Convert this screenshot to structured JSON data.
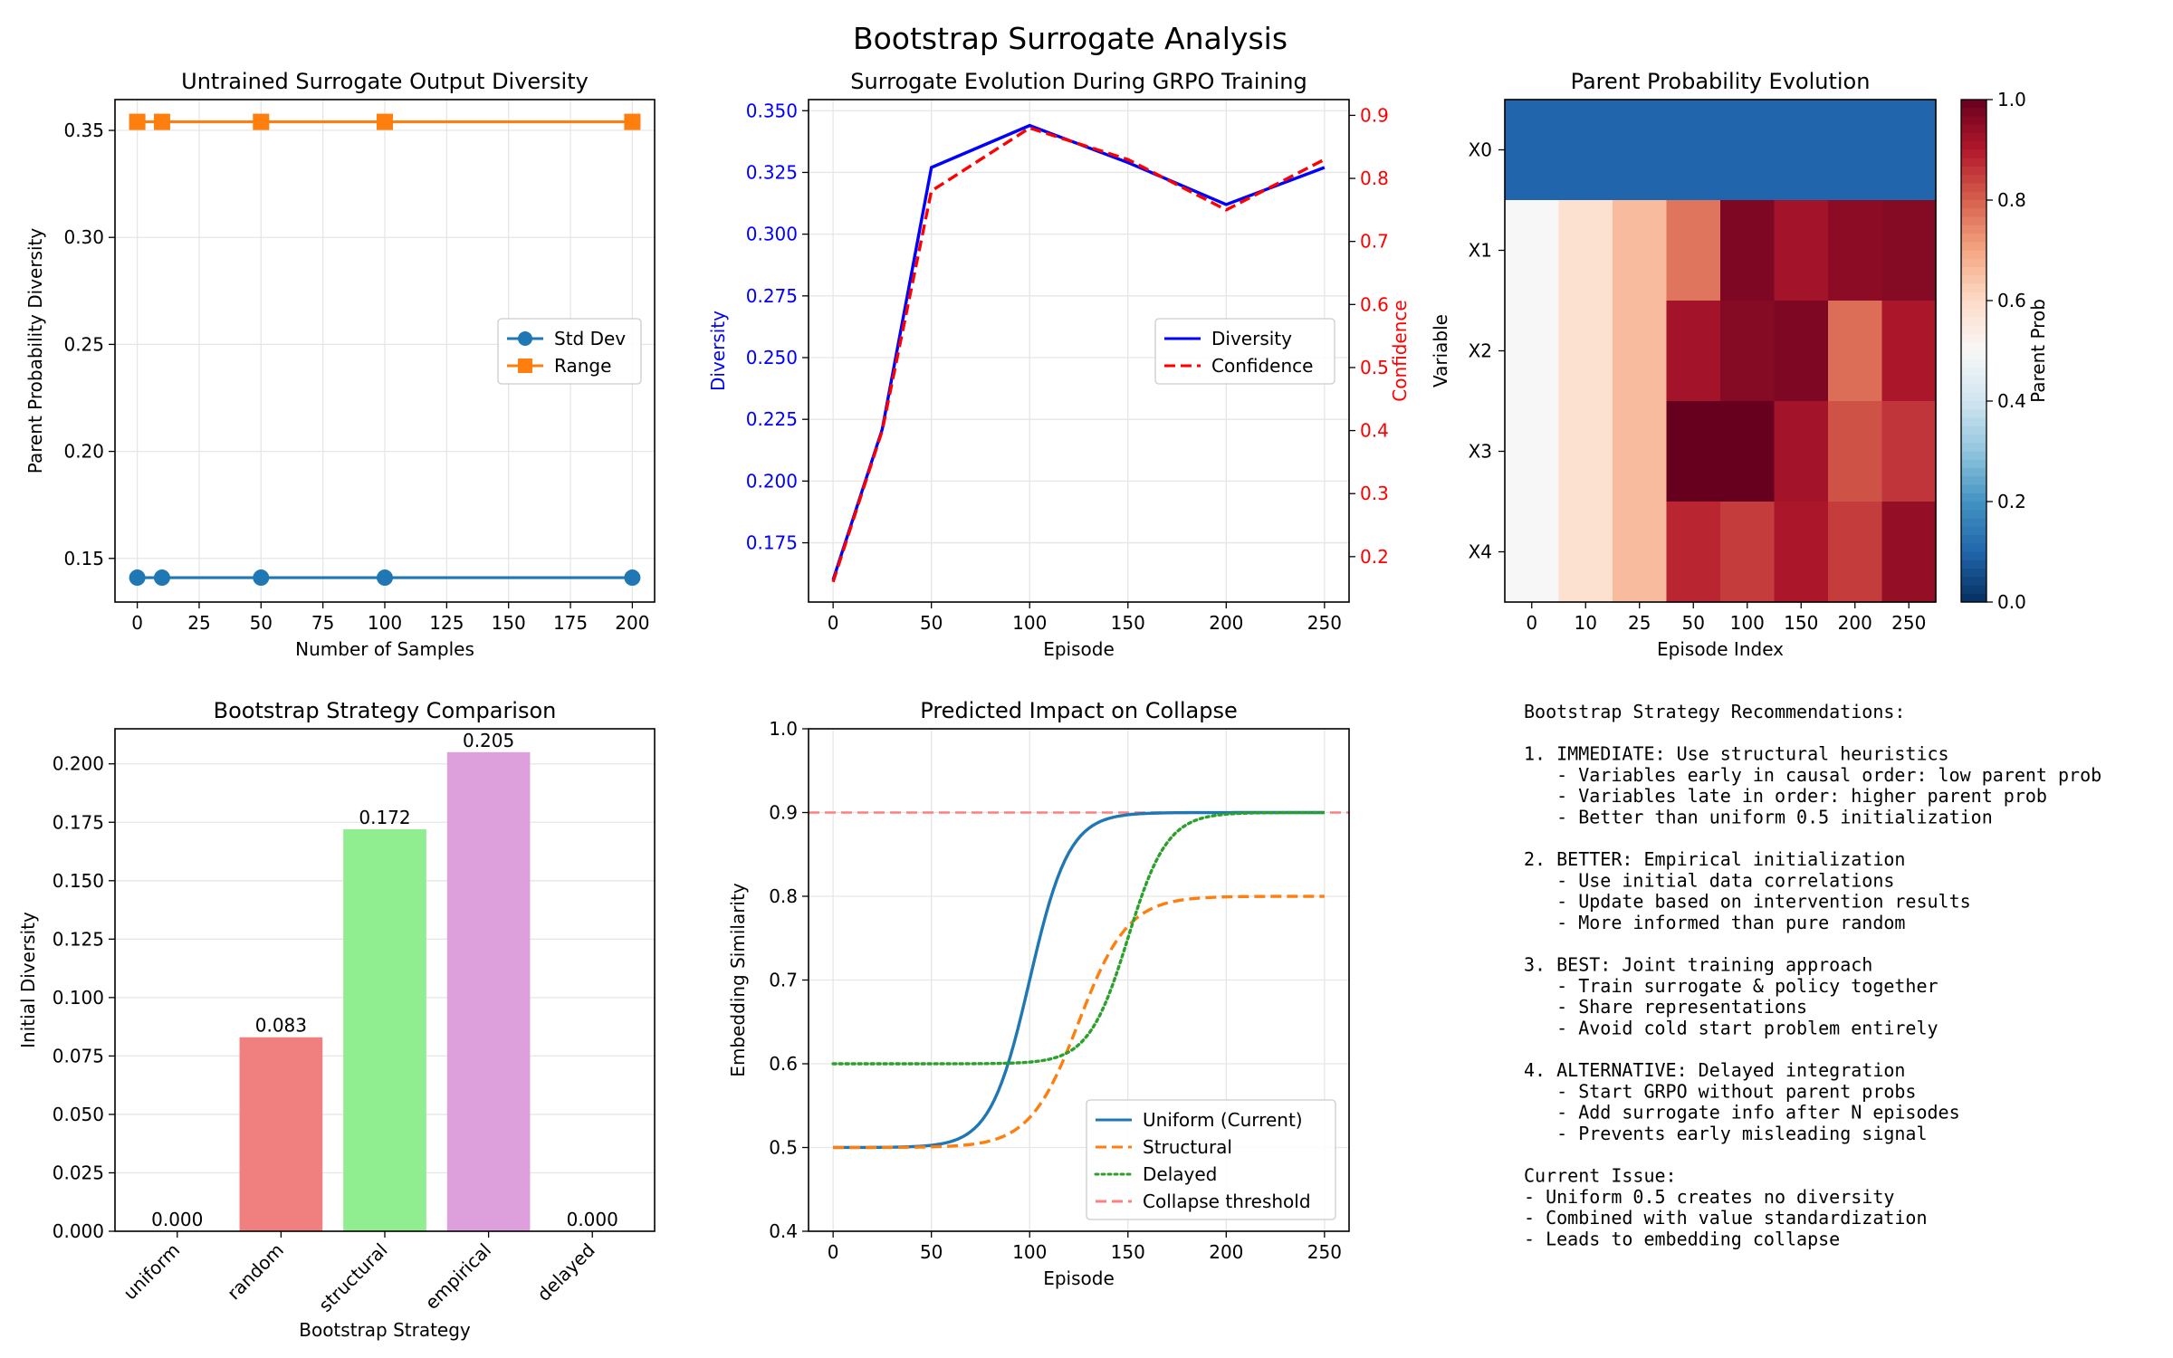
{
  "figure": {
    "title": "Bootstrap Surrogate Analysis"
  },
  "colors": {
    "blue": "#1f77b4",
    "orange": "#ff7f0e",
    "green": "#2ca02c",
    "pure_blue": "#0000ff",
    "pure_red": "#ff0000",
    "bar_random": "#f08080",
    "bar_structural": "#90ee90",
    "bar_empirical": "#dda0dd",
    "threshold": "#ff7f7f",
    "grid": "#e6e6e6"
  },
  "chart_data": [
    {
      "id": "diversity",
      "type": "line",
      "title": "Untrained Surrogate Output Diversity",
      "xlabel": "Number of Samples",
      "ylabel": "Parent Probability Diversity",
      "xlim": [
        -9,
        209
      ],
      "ylim": [
        0.1296,
        0.3644
      ],
      "x_ticks": [
        0,
        25,
        50,
        75,
        100,
        125,
        150,
        175,
        200
      ],
      "y_ticks": [
        0.15,
        0.2,
        0.25,
        0.3,
        0.35
      ],
      "y_tick_labels": [
        "0.15",
        "0.20",
        "0.25",
        "0.30",
        "0.35"
      ],
      "x": [
        0,
        10,
        50,
        100,
        200
      ],
      "series": [
        {
          "name": "Std Dev",
          "values": [
            0.141,
            0.141,
            0.141,
            0.141,
            0.141
          ],
          "color": "#1f77b4",
          "marker": "circle"
        },
        {
          "name": "Range",
          "values": [
            0.354,
            0.354,
            0.354,
            0.354,
            0.354
          ],
          "color": "#ff7f0e",
          "marker": "square"
        }
      ],
      "grid": true,
      "legend": "center-right"
    },
    {
      "id": "evolution",
      "type": "line",
      "title": "Surrogate Evolution During GRPO Training",
      "xlabel": "Episode",
      "ylabel": "Diversity",
      "ylabel_right": "Confidence",
      "xlim": [
        -12.5,
        262.5
      ],
      "ylim": [
        0.151,
        0.3545
      ],
      "ylim_right": [
        0.128,
        0.925
      ],
      "x_ticks": [
        0,
        50,
        100,
        150,
        200,
        250
      ],
      "y_ticks": [
        0.175,
        0.2,
        0.225,
        0.25,
        0.275,
        0.3,
        0.325,
        0.35
      ],
      "y_tick_labels": [
        "0.175",
        "0.200",
        "0.225",
        "0.250",
        "0.275",
        "0.300",
        "0.325",
        "0.350"
      ],
      "y_ticks_right": [
        0.2,
        0.3,
        0.4,
        0.5,
        0.6,
        0.7,
        0.8,
        0.9
      ],
      "y_tick_labels_right": [
        "0.2",
        "0.3",
        "0.4",
        "0.5",
        "0.6",
        "0.7",
        "0.8",
        "0.9"
      ],
      "x": [
        0,
        25,
        50,
        100,
        150,
        200,
        250
      ],
      "series": [
        {
          "name": "Diversity",
          "axis": "left",
          "values": [
            0.16,
            0.221,
            0.327,
            0.344,
            0.329,
            0.312,
            0.327
          ],
          "color": "#0000ff",
          "style": "solid"
        },
        {
          "name": "Confidence",
          "axis": "right",
          "values": [
            0.16,
            0.4,
            0.78,
            0.88,
            0.83,
            0.75,
            0.83
          ],
          "color": "#ff0000",
          "style": "dashed"
        }
      ],
      "grid": true,
      "legend": "center-right"
    },
    {
      "id": "heatmap",
      "type": "heatmap",
      "title": "Parent Probability Evolution",
      "xlabel": "Episode Index",
      "ylabel": "Variable",
      "x_categories": [
        "0",
        "10",
        "25",
        "50",
        "100",
        "150",
        "200",
        "250"
      ],
      "y_categories": [
        "X0",
        "X1",
        "X2",
        "X3",
        "X4"
      ],
      "values": [
        [
          0.1,
          0.1,
          0.1,
          0.1,
          0.1,
          0.1,
          0.1,
          0.1
        ],
        [
          0.5,
          0.58,
          0.66,
          0.77,
          0.97,
          0.92,
          0.95,
          0.96
        ],
        [
          0.5,
          0.58,
          0.66,
          0.92,
          0.96,
          0.97,
          0.78,
          0.91
        ],
        [
          0.5,
          0.58,
          0.66,
          1.0,
          1.0,
          0.92,
          0.82,
          0.86
        ],
        [
          0.5,
          0.58,
          0.66,
          0.88,
          0.85,
          0.91,
          0.85,
          0.94
        ]
      ],
      "colorbar": {
        "label": "Parent Prob",
        "range": [
          0.0,
          1.0
        ],
        "ticks": [
          0.0,
          0.2,
          0.4,
          0.6,
          0.8,
          1.0
        ],
        "tick_labels": [
          "0.0",
          "0.2",
          "0.4",
          "0.6",
          "0.8",
          "1.0"
        ],
        "colormap": "RdBu_r"
      }
    },
    {
      "id": "strategies",
      "type": "bar",
      "title": "Bootstrap Strategy Comparison",
      "xlabel": "Bootstrap Strategy",
      "ylabel": "Initial Diversity",
      "categories": [
        "uniform",
        "random",
        "structural",
        "empirical",
        "delayed"
      ],
      "values": [
        0.0,
        0.083,
        0.172,
        0.205,
        0.0
      ],
      "value_labels": [
        "0.000",
        "0.083",
        "0.172",
        "0.205",
        "0.000"
      ],
      "bar_colors": [
        "#1f77b4",
        "#f08080",
        "#90ee90",
        "#dda0dd",
        "#ffa500"
      ],
      "ylim": [
        0,
        0.215
      ],
      "y_ticks": [
        0.0,
        0.025,
        0.05,
        0.075,
        0.1,
        0.125,
        0.15,
        0.175,
        0.2
      ],
      "y_tick_labels": [
        "0.000",
        "0.025",
        "0.050",
        "0.075",
        "0.100",
        "0.125",
        "0.150",
        "0.175",
        "0.200"
      ],
      "grid": true
    },
    {
      "id": "impact",
      "type": "line",
      "title": "Predicted Impact on Collapse",
      "xlabel": "Episode",
      "ylabel": "Embedding Similarity",
      "xlim": [
        -12.5,
        262.5
      ],
      "ylim": [
        0.4,
        1.0
      ],
      "x_ticks": [
        0,
        50,
        100,
        150,
        200,
        250
      ],
      "y_ticks": [
        0.4,
        0.5,
        0.6,
        0.7,
        0.8,
        0.9,
        1.0
      ],
      "y_tick_labels": [
        "0.4",
        "0.5",
        "0.6",
        "0.7",
        "0.8",
        "0.9",
        "1.0"
      ],
      "curve_x_range": [
        0,
        250
      ],
      "series": [
        {
          "name": "Uniform (Current)",
          "kind": "sigmoid",
          "start": 0.5,
          "end": 0.9,
          "midpoint": 100,
          "rate": 0.1,
          "color": "#1f77b4",
          "style": "solid"
        },
        {
          "name": "Structural",
          "kind": "sigmoid",
          "start": 0.5,
          "end": 0.8,
          "midpoint": 125,
          "rate": 0.08,
          "color": "#ff7f0e",
          "style": "dashed"
        },
        {
          "name": "Delayed",
          "kind": "sigmoid",
          "start": 0.6,
          "end": 0.9,
          "midpoint": 150,
          "rate": 0.1,
          "color": "#2ca02c",
          "style": "dotted"
        }
      ],
      "threshold": {
        "name": "Collapse threshold",
        "value": 0.9,
        "color": "#ff7f7f"
      },
      "grid": true,
      "legend": "bottom-right"
    }
  ],
  "recommendations": {
    "lines": [
      "Bootstrap Strategy Recommendations:",
      "",
      "1. IMMEDIATE: Use structural heuristics",
      "   - Variables early in causal order: low parent prob",
      "   - Variables late in order: higher parent prob",
      "   - Better than uniform 0.5 initialization",
      "",
      "2. BETTER: Empirical initialization",
      "   - Use initial data correlations",
      "   - Update based on intervention results",
      "   - More informed than pure random",
      "",
      "3. BEST: Joint training approach",
      "   - Train surrogate & policy together",
      "   - Share representations",
      "   - Avoid cold start problem entirely",
      "",
      "4. ALTERNATIVE: Delayed integration",
      "   - Start GRPO without parent probs",
      "   - Add surrogate info after N episodes",
      "   - Prevents early misleading signal",
      "",
      "Current Issue:",
      "- Uniform 0.5 creates no diversity",
      "- Combined with value standardization",
      "- Leads to embedding collapse"
    ]
  }
}
